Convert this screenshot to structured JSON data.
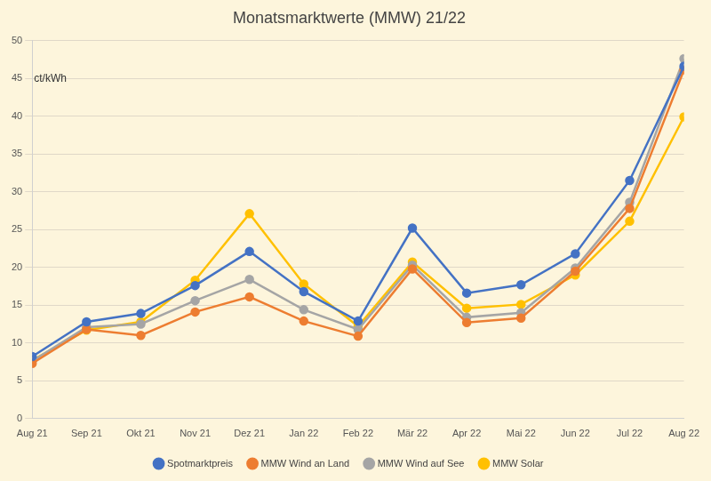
{
  "chart_data": {
    "type": "line",
    "title": "Monatsmarktwerte (MMW) 21/22",
    "y_label": "ct/kWh",
    "categories": [
      "Aug 21",
      "Sep 21",
      "Okt 21",
      "Nov 21",
      "Dez 21",
      "Jan 22",
      "Feb 22",
      "Mär 22",
      "Apr 22",
      "Mai 22",
      "Jun 22",
      "Jul 22",
      "Aug 22"
    ],
    "series": [
      {
        "name": "Spotmarktpreis",
        "color": "#4472c4",
        "values": [
          8.2,
          12.8,
          13.9,
          17.6,
          22.1,
          16.8,
          12.9,
          25.2,
          16.6,
          17.7,
          21.8,
          31.5,
          46.6
        ]
      },
      {
        "name": "MMW Wind an Land",
        "color": "#ed7d31",
        "values": [
          7.3,
          11.8,
          11.0,
          14.1,
          16.1,
          12.9,
          10.9,
          19.8,
          12.7,
          13.3,
          19.5,
          27.8,
          46.1
        ]
      },
      {
        "name": "MMW Wind auf See",
        "color": "#a5a5a5",
        "values": [
          7.6,
          12.1,
          12.5,
          15.6,
          18.4,
          14.4,
          11.8,
          20.3,
          13.4,
          14.0,
          19.9,
          28.6,
          47.6
        ]
      },
      {
        "name": "MMW Solar",
        "color": "#ffc000",
        "values": [
          7.7,
          11.7,
          12.8,
          18.3,
          27.1,
          17.8,
          12.2,
          20.7,
          14.6,
          15.1,
          19.0,
          26.1,
          39.9
        ]
      }
    ],
    "ylim": [
      0,
      50
    ],
    "yticks": [
      0,
      5,
      10,
      15,
      20,
      25,
      30,
      35,
      40,
      45,
      50
    ],
    "grid": true,
    "legend": "bottom",
    "marker": "circle"
  }
}
